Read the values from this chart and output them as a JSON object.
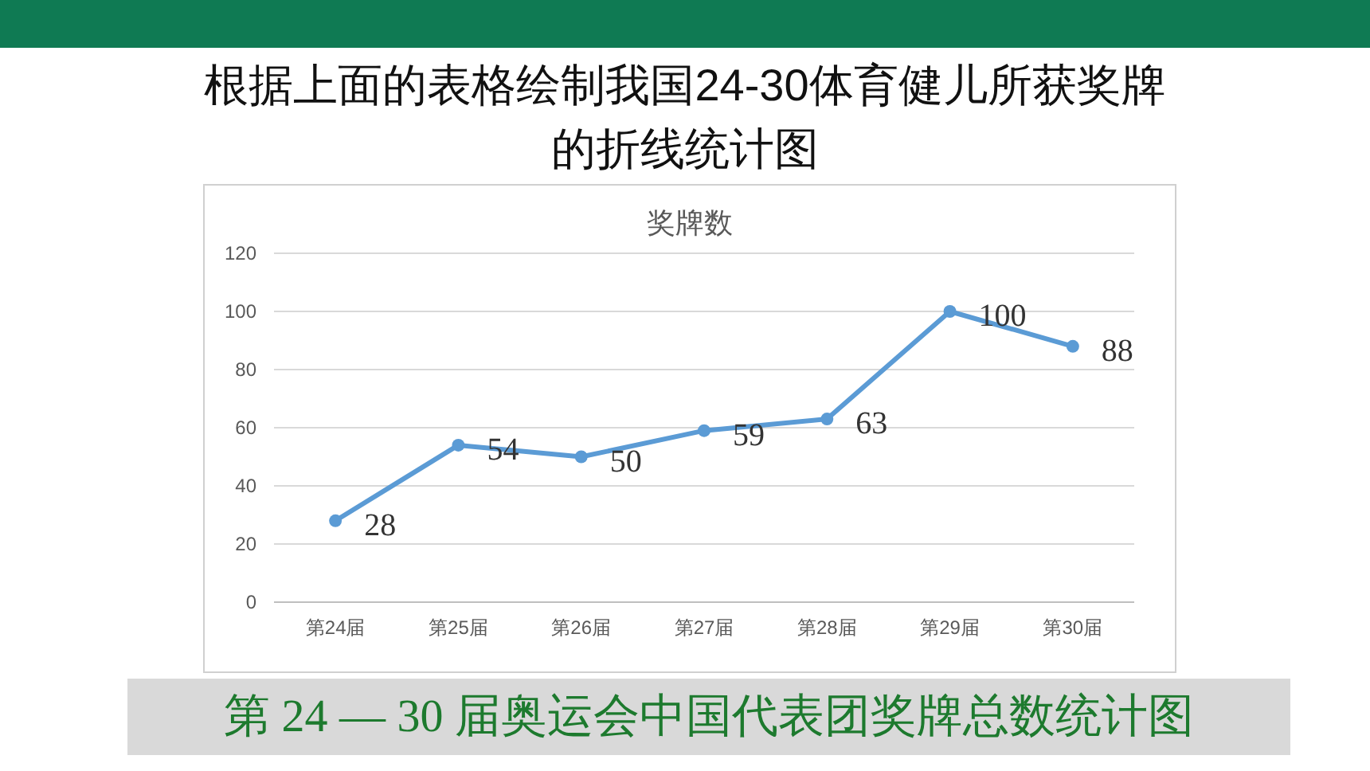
{
  "chart_data": {
    "type": "line",
    "title": "根据上面的表格绘制我国24-30体育健儿所获奖牌的折线统计图",
    "subtitle": "奖牌数",
    "categories": [
      "第24届",
      "第25届",
      "第26届",
      "第27届",
      "第28届",
      "第29届",
      "第30届"
    ],
    "series": [
      {
        "color": "#5b9bd5",
        "values": [
          28,
          54,
          50,
          59,
          63,
          100,
          88
        ]
      }
    ],
    "ylim": [
      0,
      120
    ],
    "yticks": [
      0,
      20,
      40,
      60,
      80,
      100,
      120
    ],
    "grid": "y",
    "marker": "circle",
    "line_style": "solid",
    "data_labels": true,
    "annotations": [
      "第 24 — 30 届奥运会中国代表团奖牌总数统计图"
    ]
  }
}
